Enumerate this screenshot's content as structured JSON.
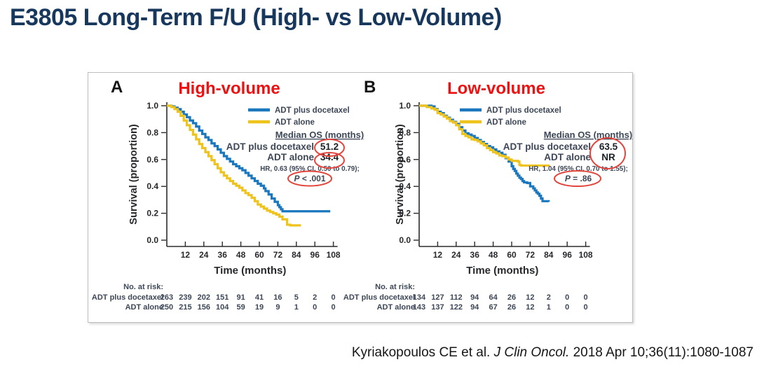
{
  "slide": {
    "title": "E3805 Long-Term F/U (High- vs Low-Volume)",
    "citation": {
      "authors": "Kyriakopoulos CE et al. ",
      "journal": "J Clin Oncol.",
      "rest": " 2018 Apr 10;36(11):1080-1087"
    }
  },
  "colors": {
    "docetaxel_blue": "#1B78BE",
    "adt_gold": "#EEC31C",
    "heading_red": "#EE1111",
    "circle_red": "#E2453C",
    "title_navy": "#17375D",
    "stats_text": "#3D4757",
    "axis_text": "#26282B"
  },
  "chart_data": [
    {
      "type": "line",
      "panel_label": "A",
      "title": "High-volume",
      "x_axis": {
        "label": "Time (months)",
        "range": [
          0,
          108
        ],
        "ticks": [
          12,
          24,
          36,
          48,
          60,
          72,
          84,
          96,
          108
        ]
      },
      "y_axis": {
        "label": "Survival (proportion)",
        "range": [
          0,
          1
        ],
        "ticks": [
          "1.0",
          "0.8",
          "0.6",
          "0.4",
          "0.2",
          "0.0"
        ]
      },
      "legend": [
        {
          "name": "ADT plus docetaxel",
          "color_key": "docetaxel_blue"
        },
        {
          "name": "ADT alone",
          "color_key": "adt_gold"
        }
      ],
      "series": [
        {
          "name": "ADT plus docetaxel",
          "color_key": "docetaxel_blue",
          "points": [
            [
              0,
              1.0
            ],
            [
              3,
              0.995
            ],
            [
              5,
              0.985
            ],
            [
              7,
              0.975
            ],
            [
              9,
              0.955
            ],
            [
              11,
              0.935
            ],
            [
              13,
              0.915
            ],
            [
              15,
              0.89
            ],
            [
              17,
              0.87
            ],
            [
              19,
              0.845
            ],
            [
              21,
              0.815
            ],
            [
              23,
              0.79
            ],
            [
              25,
              0.765
            ],
            [
              27,
              0.745
            ],
            [
              29,
              0.72
            ],
            [
              31,
              0.7
            ],
            [
              33,
              0.675
            ],
            [
              35,
              0.65
            ],
            [
              37,
              0.625
            ],
            [
              39,
              0.605
            ],
            [
              41,
              0.585
            ],
            [
              43,
              0.565
            ],
            [
              45,
              0.55
            ],
            [
              47,
              0.535
            ],
            [
              49,
              0.52
            ],
            [
              51,
              0.5
            ],
            [
              53,
              0.48
            ],
            [
              55,
              0.46
            ],
            [
              57,
              0.44
            ],
            [
              59,
              0.42
            ],
            [
              61,
              0.405
            ],
            [
              63,
              0.385
            ],
            [
              64,
              0.365
            ],
            [
              66,
              0.34
            ],
            [
              68,
              0.31
            ],
            [
              70,
              0.285
            ],
            [
              72,
              0.26
            ],
            [
              73,
              0.245
            ],
            [
              74,
              0.23
            ],
            [
              75,
              0.215
            ],
            [
              106,
              0.215
            ]
          ]
        },
        {
          "name": "ADT alone",
          "color_key": "adt_gold",
          "points": [
            [
              0,
              1.0
            ],
            [
              3,
              0.99
            ],
            [
              5,
              0.975
            ],
            [
              7,
              0.955
            ],
            [
              9,
              0.925
            ],
            [
              11,
              0.89
            ],
            [
              13,
              0.855
            ],
            [
              15,
              0.82
            ],
            [
              17,
              0.785
            ],
            [
              19,
              0.75
            ],
            [
              21,
              0.715
            ],
            [
              23,
              0.685
            ],
            [
              25,
              0.655
            ],
            [
              27,
              0.625
            ],
            [
              29,
              0.595
            ],
            [
              31,
              0.565
            ],
            [
              33,
              0.535
            ],
            [
              35,
              0.505
            ],
            [
              37,
              0.48
            ],
            [
              39,
              0.46
            ],
            [
              41,
              0.44
            ],
            [
              43,
              0.42
            ],
            [
              45,
              0.405
            ],
            [
              47,
              0.39
            ],
            [
              49,
              0.37
            ],
            [
              51,
              0.35
            ],
            [
              53,
              0.335
            ],
            [
              55,
              0.315
            ],
            [
              57,
              0.29
            ],
            [
              59,
              0.265
            ],
            [
              61,
              0.25
            ],
            [
              63,
              0.235
            ],
            [
              65,
              0.22
            ],
            [
              67,
              0.21
            ],
            [
              69,
              0.2
            ],
            [
              71,
              0.19
            ],
            [
              73,
              0.175
            ],
            [
              75,
              0.155
            ],
            [
              78,
              0.115
            ],
            [
              80,
              0.11
            ],
            [
              87,
              0.11
            ]
          ]
        }
      ],
      "stats": {
        "median_header": "Median OS (months)",
        "rows": [
          {
            "label": "ADT plus docetaxel",
            "value": "51.2"
          },
          {
            "label": "ADT alone",
            "value": "34.4"
          }
        ],
        "hr_line": "HR, 0.63 (95% CI, 0.50 to 0.79);",
        "p_italic": "P",
        "p_rest": " < .001"
      },
      "risk_table": {
        "header": "No. at risk:",
        "times": [
          0,
          12,
          24,
          36,
          48,
          60,
          72,
          84,
          96,
          108
        ],
        "rows": [
          {
            "label": "ADT plus docetaxel",
            "values": [
              263,
              239,
              202,
              151,
              91,
              41,
              16,
              5,
              2,
              0
            ]
          },
          {
            "label": "ADT alone",
            "values": [
              250,
              215,
              156,
              104,
              59,
              19,
              9,
              1,
              0,
              0
            ]
          }
        ]
      }
    },
    {
      "type": "line",
      "panel_label": "B",
      "title": "Low-volume",
      "x_axis": {
        "label": "Time (months)",
        "range": [
          0,
          108
        ],
        "ticks": [
          12,
          24,
          36,
          48,
          60,
          72,
          84,
          96,
          108
        ]
      },
      "y_axis": {
        "label": "Survival (proportion)",
        "range": [
          0,
          1
        ],
        "ticks": [
          "1.0",
          "0.8",
          "0.6",
          "0.4",
          "0.2",
          "0.0"
        ]
      },
      "legend": [
        {
          "name": "ADT plus docetaxel",
          "color_key": "docetaxel_blue"
        },
        {
          "name": "ADT alone",
          "color_key": "adt_gold"
        }
      ],
      "series": [
        {
          "name": "ADT plus docetaxel",
          "color_key": "docetaxel_blue",
          "points": [
            [
              0,
              1.0
            ],
            [
              8,
              0.995
            ],
            [
              10,
              0.975
            ],
            [
              12,
              0.955
            ],
            [
              14,
              0.945
            ],
            [
              16,
              0.925
            ],
            [
              18,
              0.91
            ],
            [
              20,
              0.895
            ],
            [
              22,
              0.88
            ],
            [
              24,
              0.865
            ],
            [
              26,
              0.84
            ],
            [
              28,
              0.815
            ],
            [
              30,
              0.795
            ],
            [
              32,
              0.785
            ],
            [
              34,
              0.775
            ],
            [
              36,
              0.76
            ],
            [
              38,
              0.745
            ],
            [
              40,
              0.73
            ],
            [
              42,
              0.715
            ],
            [
              44,
              0.7
            ],
            [
              46,
              0.69
            ],
            [
              48,
              0.675
            ],
            [
              50,
              0.66
            ],
            [
              52,
              0.65
            ],
            [
              54,
              0.635
            ],
            [
              56,
              0.61
            ],
            [
              58,
              0.585
            ],
            [
              60,
              0.55
            ],
            [
              61,
              0.53
            ],
            [
              62,
              0.515
            ],
            [
              63,
              0.495
            ],
            [
              64,
              0.48
            ],
            [
              65,
              0.465
            ],
            [
              66,
              0.455
            ],
            [
              67,
              0.44
            ],
            [
              68,
              0.43
            ],
            [
              70,
              0.425
            ],
            [
              72,
              0.4
            ],
            [
              74,
              0.385
            ],
            [
              75,
              0.37
            ],
            [
              76,
              0.355
            ],
            [
              77,
              0.345
            ],
            [
              78,
              0.33
            ],
            [
              79,
              0.31
            ],
            [
              80,
              0.29
            ],
            [
              84,
              0.285
            ]
          ]
        },
        {
          "name": "ADT alone",
          "color_key": "adt_gold",
          "points": [
            [
              0,
              1.0
            ],
            [
              5,
              0.99
            ],
            [
              8,
              0.98
            ],
            [
              10,
              0.97
            ],
            [
              12,
              0.945
            ],
            [
              14,
              0.935
            ],
            [
              16,
              0.92
            ],
            [
              18,
              0.905
            ],
            [
              20,
              0.885
            ],
            [
              22,
              0.875
            ],
            [
              24,
              0.855
            ],
            [
              26,
              0.825
            ],
            [
              28,
              0.79
            ],
            [
              30,
              0.775
            ],
            [
              32,
              0.765
            ],
            [
              34,
              0.75
            ],
            [
              36,
              0.745
            ],
            [
              38,
              0.735
            ],
            [
              40,
              0.72
            ],
            [
              42,
              0.705
            ],
            [
              44,
              0.685
            ],
            [
              46,
              0.67
            ],
            [
              48,
              0.655
            ],
            [
              50,
              0.645
            ],
            [
              52,
              0.63
            ],
            [
              54,
              0.625
            ],
            [
              56,
              0.615
            ],
            [
              58,
              0.6
            ],
            [
              60,
              0.59
            ],
            [
              64,
              0.585
            ],
            [
              65,
              0.56
            ],
            [
              66,
              0.555
            ],
            [
              84,
              0.55
            ]
          ]
        }
      ],
      "stats": {
        "median_header": "Median OS (months)",
        "rows": [
          {
            "label": "ADT plus docetaxel",
            "value": "63.5"
          },
          {
            "label": "ADT alone",
            "value": "NR"
          }
        ],
        "hr_line": "HR, 1.04 (95% CI, 0.70 to 1.55);",
        "p_italic": "P",
        "p_rest": " = .86"
      },
      "risk_table": {
        "header": "No. at risk:",
        "times": [
          0,
          12,
          24,
          36,
          48,
          60,
          72,
          84,
          96,
          108
        ],
        "rows": [
          {
            "label": "ADT plus docetaxel",
            "values": [
              134,
              127,
              112,
              94,
              64,
              26,
              12,
              2,
              0,
              0
            ]
          },
          {
            "label": "ADT alone",
            "values": [
              143,
              137,
              122,
              94,
              67,
              26,
              12,
              1,
              0,
              0
            ]
          }
        ]
      }
    }
  ]
}
